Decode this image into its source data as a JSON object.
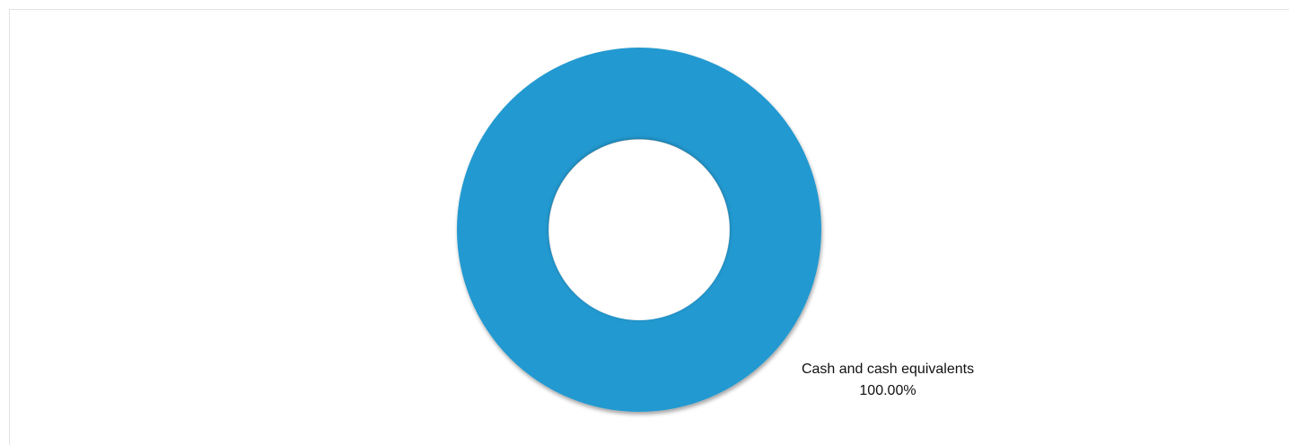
{
  "chart_data": {
    "type": "pie",
    "donut": true,
    "title": "",
    "slices": [
      {
        "label": "Cash and cash equivalents",
        "value": 100.0,
        "value_label": "100.00%",
        "color": "#2499d0"
      }
    ],
    "legend": "none",
    "data_labels": "outside-bottom-right"
  }
}
